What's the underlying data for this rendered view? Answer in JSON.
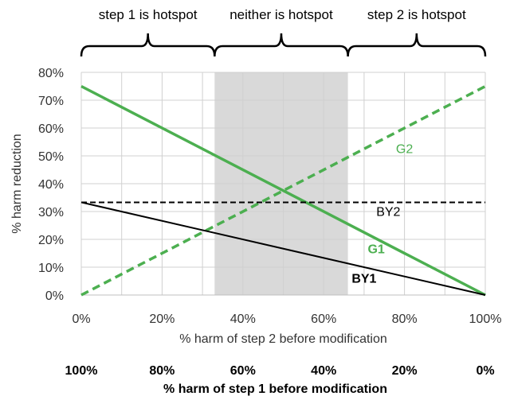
{
  "chart_data": {
    "type": "line",
    "xlabel": "% harm of step 2 before modification",
    "ylabel": "% harm reduction",
    "xlim": [
      0,
      100
    ],
    "ylim": [
      0,
      80
    ],
    "x_ticks": [
      "0%",
      "20%",
      "40%",
      "60%",
      "80%",
      "100%"
    ],
    "y_ticks": [
      "0%",
      "10%",
      "20%",
      "30%",
      "40%",
      "50%",
      "60%",
      "70%",
      "80%"
    ],
    "grid": true,
    "secondary_x_axis": {
      "label": "% harm of step 1 before modification",
      "ticks": [
        "100%",
        "80%",
        "60%",
        "40%",
        "20%",
        "0%"
      ]
    },
    "shaded_region": {
      "x_start": 33,
      "x_end": 66,
      "color": "#d9d9d9"
    },
    "regions": [
      {
        "label": "step 1 is hotspot",
        "x_start": 0,
        "x_end": 33
      },
      {
        "label": "neither is hotspot",
        "x_start": 33,
        "x_end": 66
      },
      {
        "label": "step 2 is hotspot",
        "x_start": 66,
        "x_end": 100
      }
    ],
    "series": [
      {
        "name": "G1",
        "x": [
          0,
          100
        ],
        "values": [
          75,
          0
        ],
        "color": "#4caf50",
        "style": "solid",
        "bold": true
      },
      {
        "name": "G2",
        "x": [
          0,
          100
        ],
        "values": [
          0,
          75
        ],
        "color": "#4caf50",
        "style": "dashed",
        "bold": false
      },
      {
        "name": "BY1",
        "x": [
          0,
          100
        ],
        "values": [
          33.3,
          0
        ],
        "color": "#000000",
        "style": "solid",
        "bold": true
      },
      {
        "name": "BY2",
        "x": [
          0,
          100
        ],
        "values": [
          33.3,
          33.3
        ],
        "color": "#000000",
        "style": "dashed",
        "bold": false
      }
    ]
  }
}
